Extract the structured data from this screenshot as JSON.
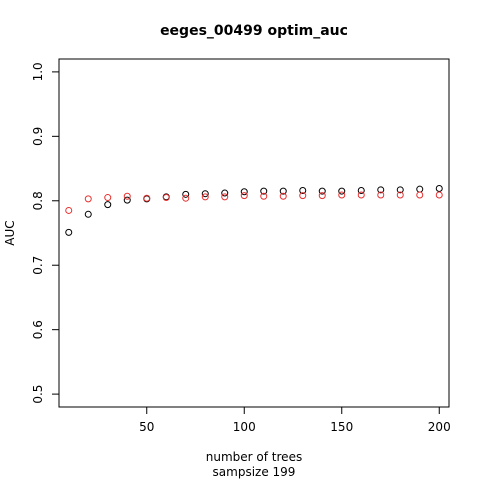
{
  "chart_data": {
    "type": "scatter",
    "title": "eeges_00499 optim_auc",
    "xlabel": "number of trees",
    "xlabel2": "sampsize 199",
    "ylabel": "AUC",
    "xlim": [
      5,
      205
    ],
    "ylim": [
      0.48,
      1.02
    ],
    "xticks": [
      50,
      100,
      150,
      200
    ],
    "xtick_labels": [
      "50",
      "100",
      "150",
      "200"
    ],
    "yticks": [
      0.5,
      0.6,
      0.7,
      0.8,
      0.9,
      1.0
    ],
    "ytick_labels": [
      "0.5",
      "0.6",
      "0.7",
      "0.8",
      "0.9",
      "1.0"
    ],
    "grid": false,
    "legend": "none",
    "x": [
      10,
      20,
      30,
      40,
      50,
      60,
      70,
      80,
      90,
      100,
      110,
      120,
      130,
      140,
      150,
      160,
      170,
      180,
      190,
      200
    ],
    "series": [
      {
        "color": "#000000",
        "values": [
          0.751,
          0.779,
          0.794,
          0.801,
          0.803,
          0.806,
          0.81,
          0.811,
          0.812,
          0.814,
          0.815,
          0.815,
          0.816,
          0.815,
          0.815,
          0.816,
          0.817,
          0.817,
          0.818,
          0.819
        ]
      },
      {
        "color": "#e8312f",
        "values": [
          0.785,
          0.803,
          0.805,
          0.807,
          0.804,
          0.805,
          0.804,
          0.806,
          0.806,
          0.808,
          0.807,
          0.807,
          0.808,
          0.808,
          0.809,
          0.809,
          0.809,
          0.809,
          0.809,
          0.809
        ]
      }
    ]
  }
}
